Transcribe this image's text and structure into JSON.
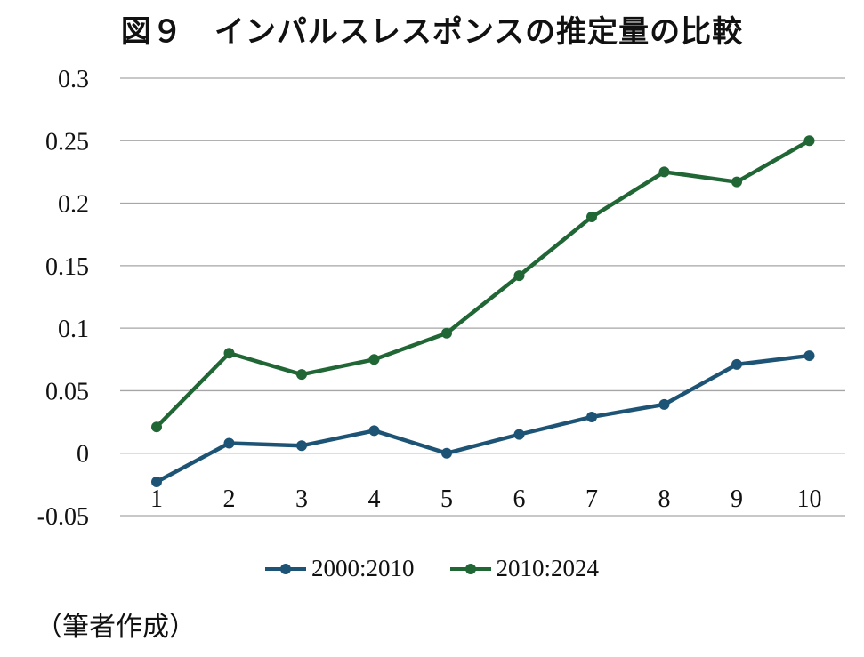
{
  "title": "図９　インパルスレスポンスの推定量の比較",
  "source_note": "（筆者作成）",
  "colors": {
    "series1": "#1d5475",
    "series2": "#216635",
    "grid": "#a6a6a6"
  },
  "chart_data": {
    "type": "line",
    "categories": [
      "1",
      "2",
      "3",
      "4",
      "5",
      "6",
      "7",
      "8",
      "9",
      "10"
    ],
    "series": [
      {
        "name": "2000:2010",
        "values": [
          -0.023,
          0.008,
          0.006,
          0.018,
          0.0,
          0.015,
          0.029,
          0.039,
          0.071,
          0.078
        ]
      },
      {
        "name": "2010:2024",
        "values": [
          0.021,
          0.08,
          0.063,
          0.075,
          0.096,
          0.142,
          0.189,
          0.225,
          0.217,
          0.25
        ]
      }
    ],
    "yticks": [
      "-0.05",
      "0",
      "0.05",
      "0.1",
      "0.15",
      "0.2",
      "0.25",
      "0.3"
    ],
    "ylim": [
      -0.05,
      0.3
    ],
    "grid": true,
    "legend": "bottom"
  }
}
